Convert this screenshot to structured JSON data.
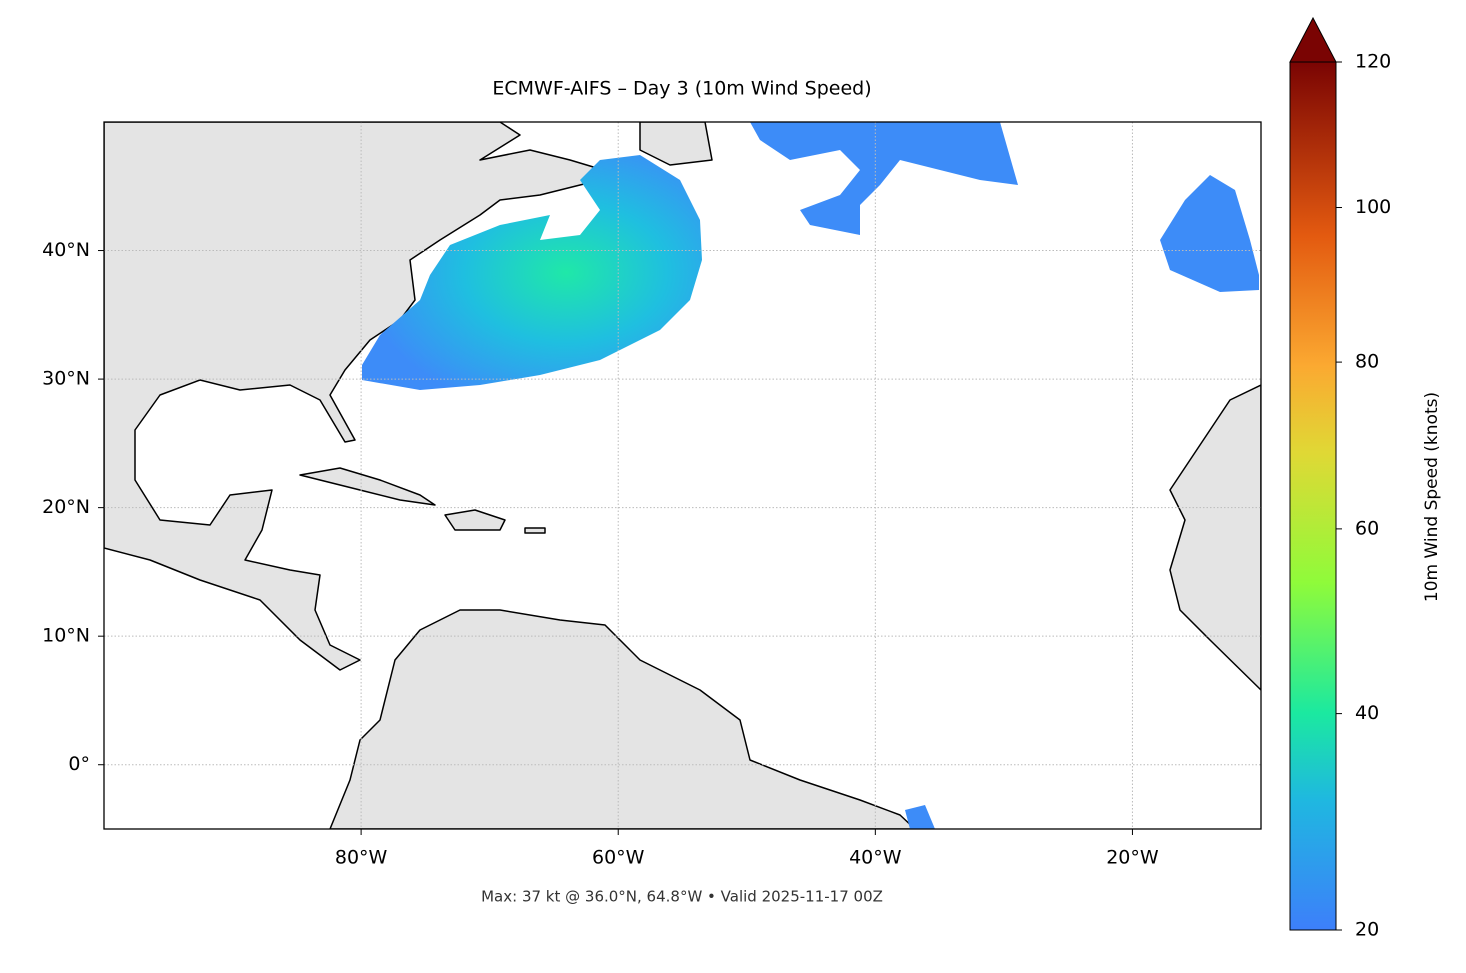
{
  "title": "ECMWF-AIFS – Day 3 (10m Wind Speed)",
  "map": {
    "xlim": [
      -100,
      -10
    ],
    "ylim": [
      -5,
      50
    ],
    "xticks": [
      {
        "value": -80,
        "label": "80°W"
      },
      {
        "value": -60,
        "label": "60°W"
      },
      {
        "value": -40,
        "label": "40°W"
      },
      {
        "value": -20,
        "label": "20°W"
      }
    ],
    "yticks": [
      {
        "value": 0,
        "label": "0°"
      },
      {
        "value": 10,
        "label": "10°N"
      },
      {
        "value": 20,
        "label": "20°N"
      },
      {
        "value": 30,
        "label": "30°N"
      },
      {
        "value": 40,
        "label": "40°N"
      }
    ],
    "grid": true
  },
  "colorbar": {
    "label": "10m Wind Speed (knots)",
    "lim": [
      20,
      120
    ],
    "ticks": [
      20,
      40,
      60,
      80,
      100,
      120
    ]
  },
  "footer": "Max: 37 kt @ 36.0°N, 64.8°W • Valid 2025-11-17 00Z"
}
